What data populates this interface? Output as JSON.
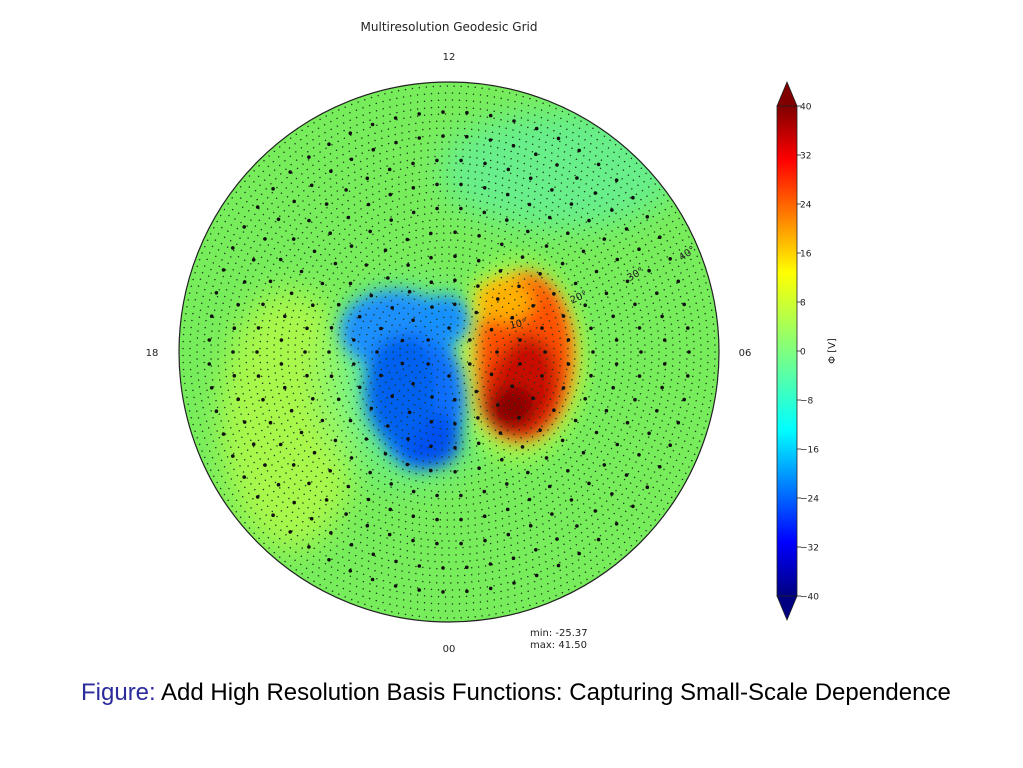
{
  "caption": {
    "lead": "Figure:",
    "text": "Add High Resolution Basis Functions: Capturing Small-Scale Dependence"
  },
  "chart_data": {
    "type": "heatmap",
    "projection": "polar",
    "title": "Multiresolution Geodesic Grid",
    "direction_labels": {
      "top": "12",
      "left": "18",
      "right": "06",
      "bottom": "00"
    },
    "latitude_labels": [
      "10°",
      "20°",
      "30°",
      "40°"
    ],
    "colorbar": {
      "label": "Φ [V]",
      "range": [
        -40,
        40
      ],
      "ticks": [
        "40",
        "32",
        "24",
        "16",
        "8",
        "0",
        "−8",
        "−16",
        "−24",
        "−32",
        "−40"
      ],
      "colormap": "jet",
      "extend": "both"
    },
    "stats": {
      "min": "min: -25.37",
      "max": "max: 41.50"
    },
    "features": [
      {
        "kind": "negative-lobe",
        "value": -25.37,
        "side": "dawn-left"
      },
      {
        "kind": "positive-lobe",
        "value": 41.5,
        "side": "dusk-right"
      }
    ],
    "background_value": 0,
    "grid_points": "multiresolution geodesic nodes (coarse and fine)"
  }
}
